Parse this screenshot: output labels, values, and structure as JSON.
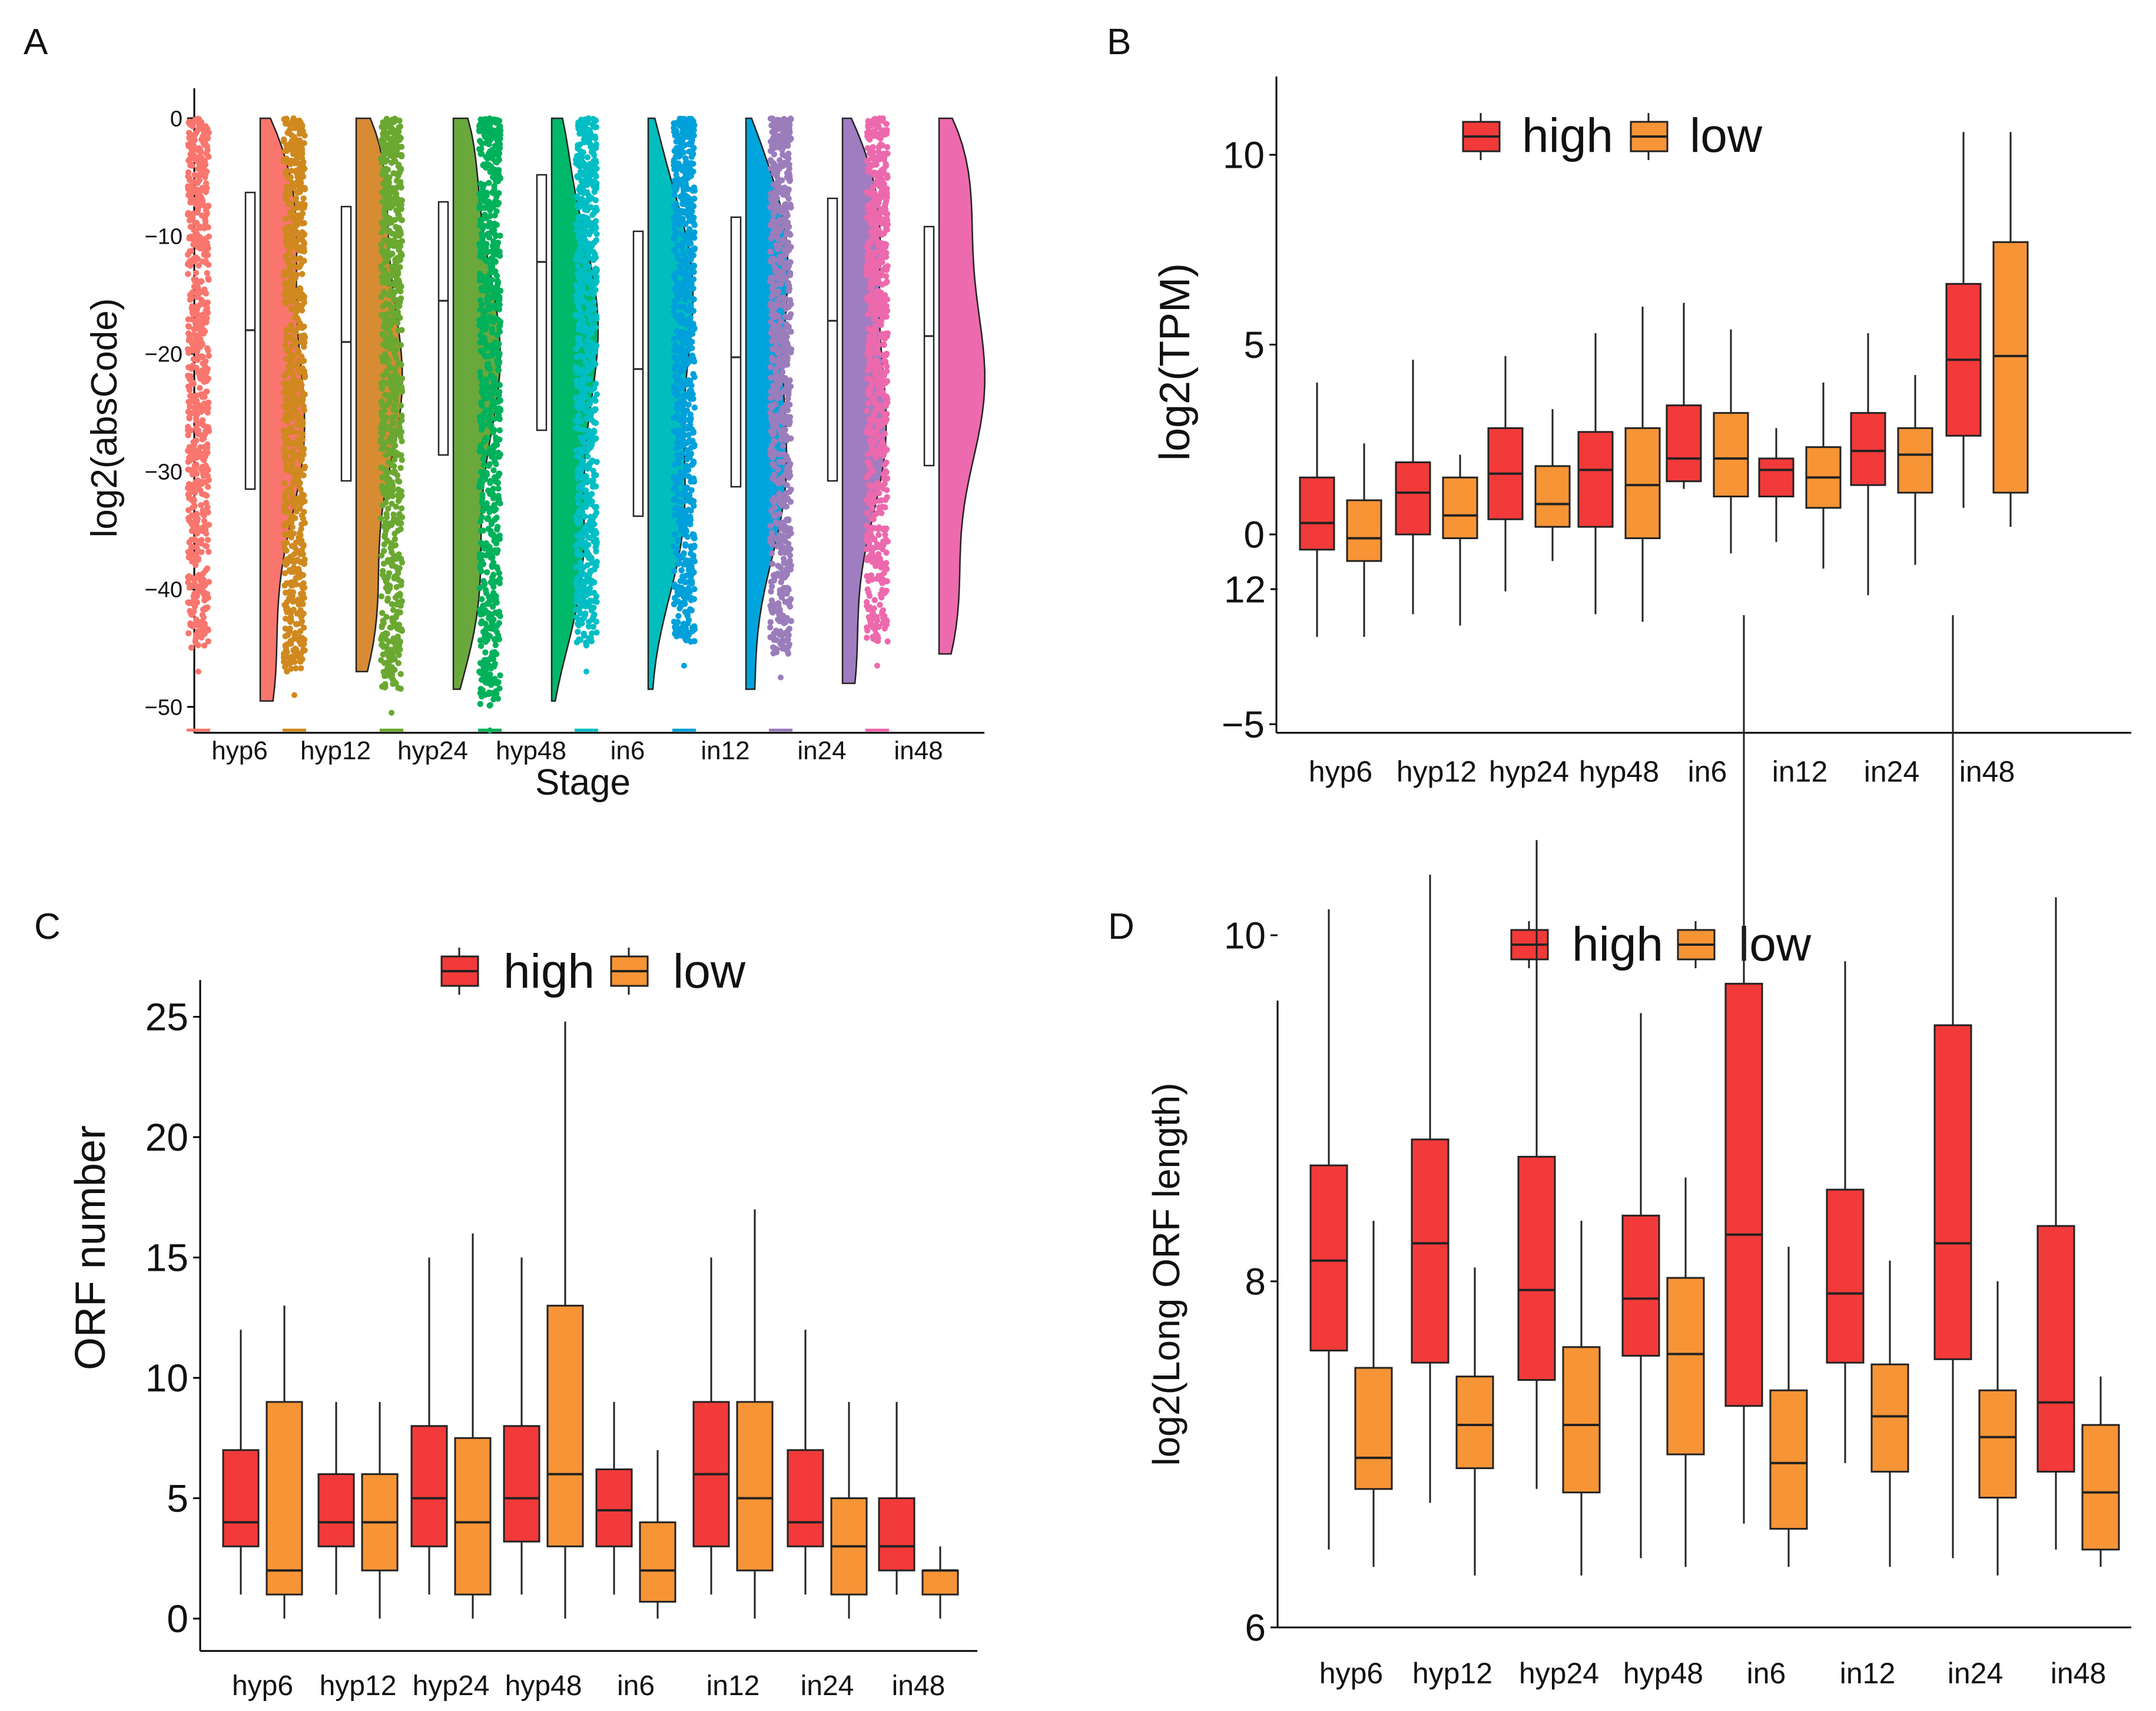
{
  "panel_letters": [
    "A",
    "B",
    "C",
    "D"
  ],
  "colors": {
    "high": "#f33a3a",
    "low": "#f79536",
    "A_stage_colors": [
      "#f8766d",
      "#d0891f",
      "#6aa832",
      "#00b15b",
      "#00bec3",
      "#00a0db",
      "#9b7dbc",
      "#ec69ad"
    ],
    "A_violin_colors": [
      "#f8766d",
      "#d78b33",
      "#6aa83b",
      "#00b86a",
      "#00bebe",
      "#00a4dc",
      "#a07cc0",
      "#ee6aae"
    ]
  },
  "chart_data": [
    {
      "panel": "A",
      "type": "raincloud",
      "title": "",
      "xlabel": "Stage",
      "ylabel": "log2(absCode)",
      "ylim": [
        -52,
        2
      ],
      "yticks": [
        0,
        -10,
        -20,
        -30,
        -40,
        -50
      ],
      "ytick_labels": [
        "0",
        "−10",
        "−20",
        "−30",
        "−40",
        "−50"
      ],
      "categories": [
        "hyp6",
        "hyp12",
        "hyp24",
        "hyp48",
        "in6",
        "in12",
        "in24",
        "in48"
      ],
      "box": [
        {
          "q1": -31.5,
          "median": -18,
          "q3": -6.3
        },
        {
          "q1": -30.8,
          "median": -19,
          "q3": -7.5
        },
        {
          "q1": -28.6,
          "median": -15.5,
          "q3": -7.1
        },
        {
          "q1": -26.5,
          "median": -12.2,
          "q3": -4.8
        },
        {
          "q1": -33.8,
          "median": -21.3,
          "q3": -9.6
        },
        {
          "q1": -31.3,
          "median": -20.3,
          "q3": -8.4
        },
        {
          "q1": -30.8,
          "median": -17.2,
          "q3": -6.8
        },
        {
          "q1": -29.5,
          "median": -18.5,
          "q3": -9.2
        }
      ],
      "violin_min": [
        -49.5,
        -47,
        -48.5,
        -49.5,
        -48.5,
        -48.5,
        -48,
        -45.5
      ],
      "point_min": [
        -45,
        -47,
        -48.5,
        -50,
        -45,
        -44.5,
        -45.5,
        -44.5
      ]
    },
    {
      "panel": "B",
      "type": "boxplot",
      "title": "",
      "xlabel": "",
      "ylabel": "log2(TPM)",
      "ylim": [
        -5,
        12
      ],
      "yticks": [
        10,
        5,
        0,
        -5
      ],
      "ytick_labels": [
        "10",
        "5",
        "0",
        "−5"
      ],
      "legend": [
        "high",
        "low"
      ],
      "categories": [
        "hyp6",
        "hyp12",
        "hyp24",
        "hyp48",
        "in6",
        "in12",
        "in24",
        "in48"
      ],
      "series": [
        {
          "name": "high",
          "stats": [
            {
              "min": -2.7,
              "q1": -0.4,
              "median": 0.3,
              "q3": 1.5,
              "max": 4.0
            },
            {
              "min": -2.1,
              "q1": 0.0,
              "median": 1.1,
              "q3": 1.9,
              "max": 4.6
            },
            {
              "min": -1.5,
              "q1": 0.4,
              "median": 1.6,
              "q3": 2.8,
              "max": 4.7
            },
            {
              "min": -2.1,
              "q1": 0.2,
              "median": 1.7,
              "q3": 2.7,
              "max": 5.3
            },
            {
              "min": 1.2,
              "q1": 1.4,
              "median": 2.0,
              "q3": 3.4,
              "max": 6.1
            },
            {
              "min": -0.2,
              "q1": 1.0,
              "median": 1.7,
              "q3": 2.0,
              "max": 2.8
            },
            {
              "min": -1.6,
              "q1": 1.3,
              "median": 2.2,
              "q3": 3.2,
              "max": 5.3
            },
            {
              "min": 0.7,
              "q1": 2.6,
              "median": 4.6,
              "q3": 6.6,
              "max": 10.6
            }
          ]
        },
        {
          "name": "low",
          "stats": [
            {
              "min": -2.7,
              "q1": -0.7,
              "median": -0.1,
              "q3": 0.9,
              "max": 2.4
            },
            {
              "min": -2.4,
              "q1": -0.1,
              "median": 0.5,
              "q3": 1.5,
              "max": 2.1
            },
            {
              "min": -0.7,
              "q1": 0.2,
              "median": 0.8,
              "q3": 1.8,
              "max": 3.3
            },
            {
              "min": -2.3,
              "q1": -0.1,
              "median": 1.3,
              "q3": 2.8,
              "max": 6.0
            },
            {
              "min": -0.5,
              "q1": 1.0,
              "median": 2.0,
              "q3": 3.2,
              "max": 5.4
            },
            {
              "min": -0.9,
              "q1": 0.7,
              "median": 1.5,
              "q3": 2.3,
              "max": 4.0
            },
            {
              "min": -0.8,
              "q1": 1.1,
              "median": 2.1,
              "q3": 2.8,
              "max": 4.2
            },
            {
              "min": 0.2,
              "q1": 1.1,
              "median": 4.7,
              "q3": 7.7,
              "max": 10.6
            }
          ]
        }
      ]
    },
    {
      "panel": "C",
      "type": "boxplot",
      "title": "",
      "xlabel": "",
      "ylabel": "ORF number",
      "ylim": [
        -1,
        26
      ],
      "yticks": [
        25,
        20,
        15,
        10,
        5,
        0
      ],
      "ytick_labels": [
        "25",
        "20",
        "15",
        "10",
        "5",
        "0"
      ],
      "legend": [
        "high",
        "low"
      ],
      "categories": [
        "hyp6",
        "hyp12",
        "hyp24",
        "hyp48",
        "in6",
        "in12",
        "in24",
        "in48"
      ],
      "series": [
        {
          "name": "high",
          "stats": [
            {
              "min": 1,
              "q1": 3,
              "median": 4,
              "q3": 7,
              "max": 12
            },
            {
              "min": 1,
              "q1": 3,
              "median": 4,
              "q3": 6,
              "max": 9
            },
            {
              "min": 1,
              "q1": 3,
              "median": 5,
              "q3": 8,
              "max": 15
            },
            {
              "min": 1,
              "q1": 3.2,
              "median": 5,
              "q3": 8,
              "max": 15
            },
            {
              "min": 1,
              "q1": 3,
              "median": 4.5,
              "q3": 6.2,
              "max": 9
            },
            {
              "min": 1,
              "q1": 3,
              "median": 6,
              "q3": 9,
              "max": 15
            },
            {
              "min": 1,
              "q1": 3,
              "median": 4,
              "q3": 7,
              "max": 12
            },
            {
              "min": 1,
              "q1": 2,
              "median": 3,
              "q3": 5,
              "max": 9
            }
          ]
        },
        {
          "name": "low",
          "stats": [
            {
              "min": 0,
              "q1": 1,
              "median": 2,
              "q3": 9,
              "max": 13
            },
            {
              "min": 0,
              "q1": 2,
              "median": 4,
              "q3": 6,
              "max": 9
            },
            {
              "min": 0,
              "q1": 1,
              "median": 4,
              "q3": 7.5,
              "max": 16
            },
            {
              "min": 0,
              "q1": 3,
              "median": 6,
              "q3": 13,
              "max": 24.8
            },
            {
              "min": 0,
              "q1": 0.7,
              "median": 2,
              "q3": 4,
              "max": 7
            },
            {
              "min": 0,
              "q1": 2,
              "median": 5,
              "q3": 9,
              "max": 17
            },
            {
              "min": 0,
              "q1": 1,
              "median": 3,
              "q3": 5,
              "max": 9
            },
            {
              "min": 0,
              "q1": 1,
              "median": 2,
              "q3": 2,
              "max": 3
            }
          ]
        }
      ]
    },
    {
      "panel": "D",
      "type": "boxplot",
      "title": "",
      "xlabel": "",
      "ylabel": "log2(Long ORF length)",
      "ylim": [
        5.9,
        12.3
      ],
      "yticks": [
        12,
        10,
        8,
        6
      ],
      "ytick_labels": [
        "12",
        "10",
        "8",
        "6"
      ],
      "legend": [
        "high",
        "low"
      ],
      "categories": [
        "hyp6",
        "hyp12",
        "hyp24",
        "hyp48",
        "in6",
        "in12",
        "in24",
        "in48"
      ],
      "series": [
        {
          "name": "high",
          "stats": [
            {
              "min": 6.45,
              "q1": 7.6,
              "median": 8.12,
              "q3": 8.67,
              "max": 10.15
            },
            {
              "min": 6.72,
              "q1": 7.53,
              "median": 8.22,
              "q3": 8.82,
              "max": 10.35
            },
            {
              "min": 6.8,
              "q1": 7.43,
              "median": 7.95,
              "q3": 8.72,
              "max": 10.55
            },
            {
              "min": 6.4,
              "q1": 7.57,
              "median": 7.9,
              "q3": 8.38,
              "max": 9.55
            },
            {
              "min": 6.6,
              "q1": 7.28,
              "median": 8.27,
              "q3": 9.72,
              "max": 11.85
            },
            {
              "min": 6.95,
              "q1": 7.53,
              "median": 7.93,
              "q3": 8.53,
              "max": 9.85
            },
            {
              "min": 6.4,
              "q1": 7.55,
              "median": 8.22,
              "q3": 9.48,
              "max": 11.85
            },
            {
              "min": 6.45,
              "q1": 6.9,
              "median": 7.3,
              "q3": 8.32,
              "max": 10.22
            }
          ]
        },
        {
          "name": "low",
          "stats": [
            {
              "min": 6.35,
              "q1": 6.8,
              "median": 6.98,
              "q3": 7.5,
              "max": 8.35
            },
            {
              "min": 6.3,
              "q1": 6.92,
              "median": 7.17,
              "q3": 7.45,
              "max": 8.08
            },
            {
              "min": 6.3,
              "q1": 6.78,
              "median": 7.17,
              "q3": 7.62,
              "max": 8.35
            },
            {
              "min": 6.35,
              "q1": 7.0,
              "median": 7.58,
              "q3": 8.02,
              "max": 8.6
            },
            {
              "min": 6.35,
              "q1": 6.57,
              "median": 6.95,
              "q3": 7.37,
              "max": 8.2
            },
            {
              "min": 6.35,
              "q1": 6.9,
              "median": 7.22,
              "q3": 7.52,
              "max": 8.12
            },
            {
              "min": 6.3,
              "q1": 6.75,
              "median": 7.1,
              "q3": 7.37,
              "max": 8.0
            },
            {
              "min": 6.35,
              "q1": 6.45,
              "median": 6.78,
              "q3": 7.17,
              "max": 7.45
            }
          ]
        }
      ]
    }
  ]
}
